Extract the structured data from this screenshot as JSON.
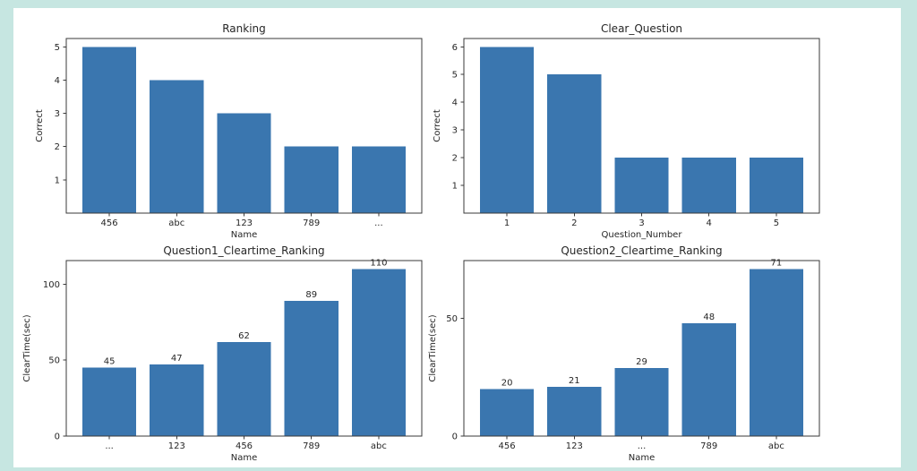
{
  "page": {
    "background_color": "#c6e6e1",
    "figure_background": "#ffffff",
    "spine_color": "#3a3a3a",
    "text_color": "#262626"
  },
  "chart_data": [
    {
      "type": "bar",
      "title": "Ranking",
      "xlabel": "Name",
      "ylabel": "Correct",
      "categories": [
        "456",
        "abc",
        "123",
        "789",
        "..."
      ],
      "values": [
        5,
        4,
        3,
        2,
        2
      ],
      "yticks": [
        1,
        2,
        3,
        4,
        5
      ],
      "ylim": [
        0,
        5.25
      ],
      "bar_color": "#3a76af",
      "show_values": false,
      "grid": false,
      "legend": null
    },
    {
      "type": "bar",
      "title": "Clear_Question",
      "xlabel": "Question_Number",
      "ylabel": "Correct",
      "categories": [
        "1",
        "2",
        "3",
        "4",
        "5"
      ],
      "values": [
        6,
        5,
        2,
        2,
        2
      ],
      "yticks": [
        1,
        2,
        3,
        4,
        5,
        6
      ],
      "ylim": [
        0,
        6.3
      ],
      "bar_color": "#3a76af",
      "show_values": false,
      "grid": false,
      "legend": null
    },
    {
      "type": "bar",
      "title": "Question1_Cleartime_Ranking",
      "xlabel": "Name",
      "ylabel": "ClearTime(sec)",
      "categories": [
        "...",
        "123",
        "456",
        "789",
        "abc"
      ],
      "values": [
        45,
        47,
        62,
        89,
        110
      ],
      "value_labels": [
        "45",
        "47",
        "62",
        "89",
        "110"
      ],
      "yticks": [
        0,
        50,
        100
      ],
      "ylim": [
        0,
        115.5
      ],
      "bar_color": "#3a76af",
      "show_values": true,
      "grid": false,
      "legend": null
    },
    {
      "type": "bar",
      "title": "Question2_Cleartime_Ranking",
      "xlabel": "Name",
      "ylabel": "ClearTime(sec)",
      "categories": [
        "456",
        "123",
        "...",
        "789",
        "abc"
      ],
      "values": [
        20,
        21,
        29,
        48,
        71
      ],
      "value_labels": [
        "20",
        "21",
        "29",
        "48",
        "71"
      ],
      "yticks": [
        0,
        50
      ],
      "ylim": [
        0,
        74.55
      ],
      "bar_color": "#3a76af",
      "show_values": true,
      "grid": false,
      "legend": null
    }
  ]
}
